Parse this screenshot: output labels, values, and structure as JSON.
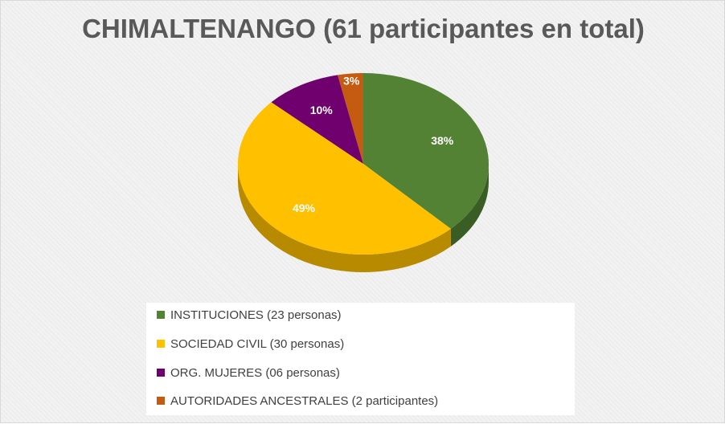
{
  "chart_data": {
    "type": "pie",
    "title": "CHIMALTENANGO (61 participantes en total)",
    "slices": [
      {
        "label": "INSTITUCIONES (23 personas)",
        "value": 23,
        "percent_label": "38%",
        "color": "#548235",
        "side_color": "#3a5c25"
      },
      {
        "label": "SOCIEDAD CIVIL (30 personas)",
        "value": 30,
        "percent_label": "49%",
        "color": "#ffc000",
        "side_color": "#b88a00"
      },
      {
        "label": "ORG. MUJERES (06 personas)",
        "value": 6,
        "percent_label": "10%",
        "color": "#70006e",
        "side_color": "#4a0048"
      },
      {
        "label": "AUTORIDADES ANCESTRALES (2 participantes)",
        "value": 2,
        "percent_label": "3%",
        "color": "#c55a11",
        "side_color": "#8a3d0b"
      }
    ],
    "legend_position": "bottom"
  }
}
